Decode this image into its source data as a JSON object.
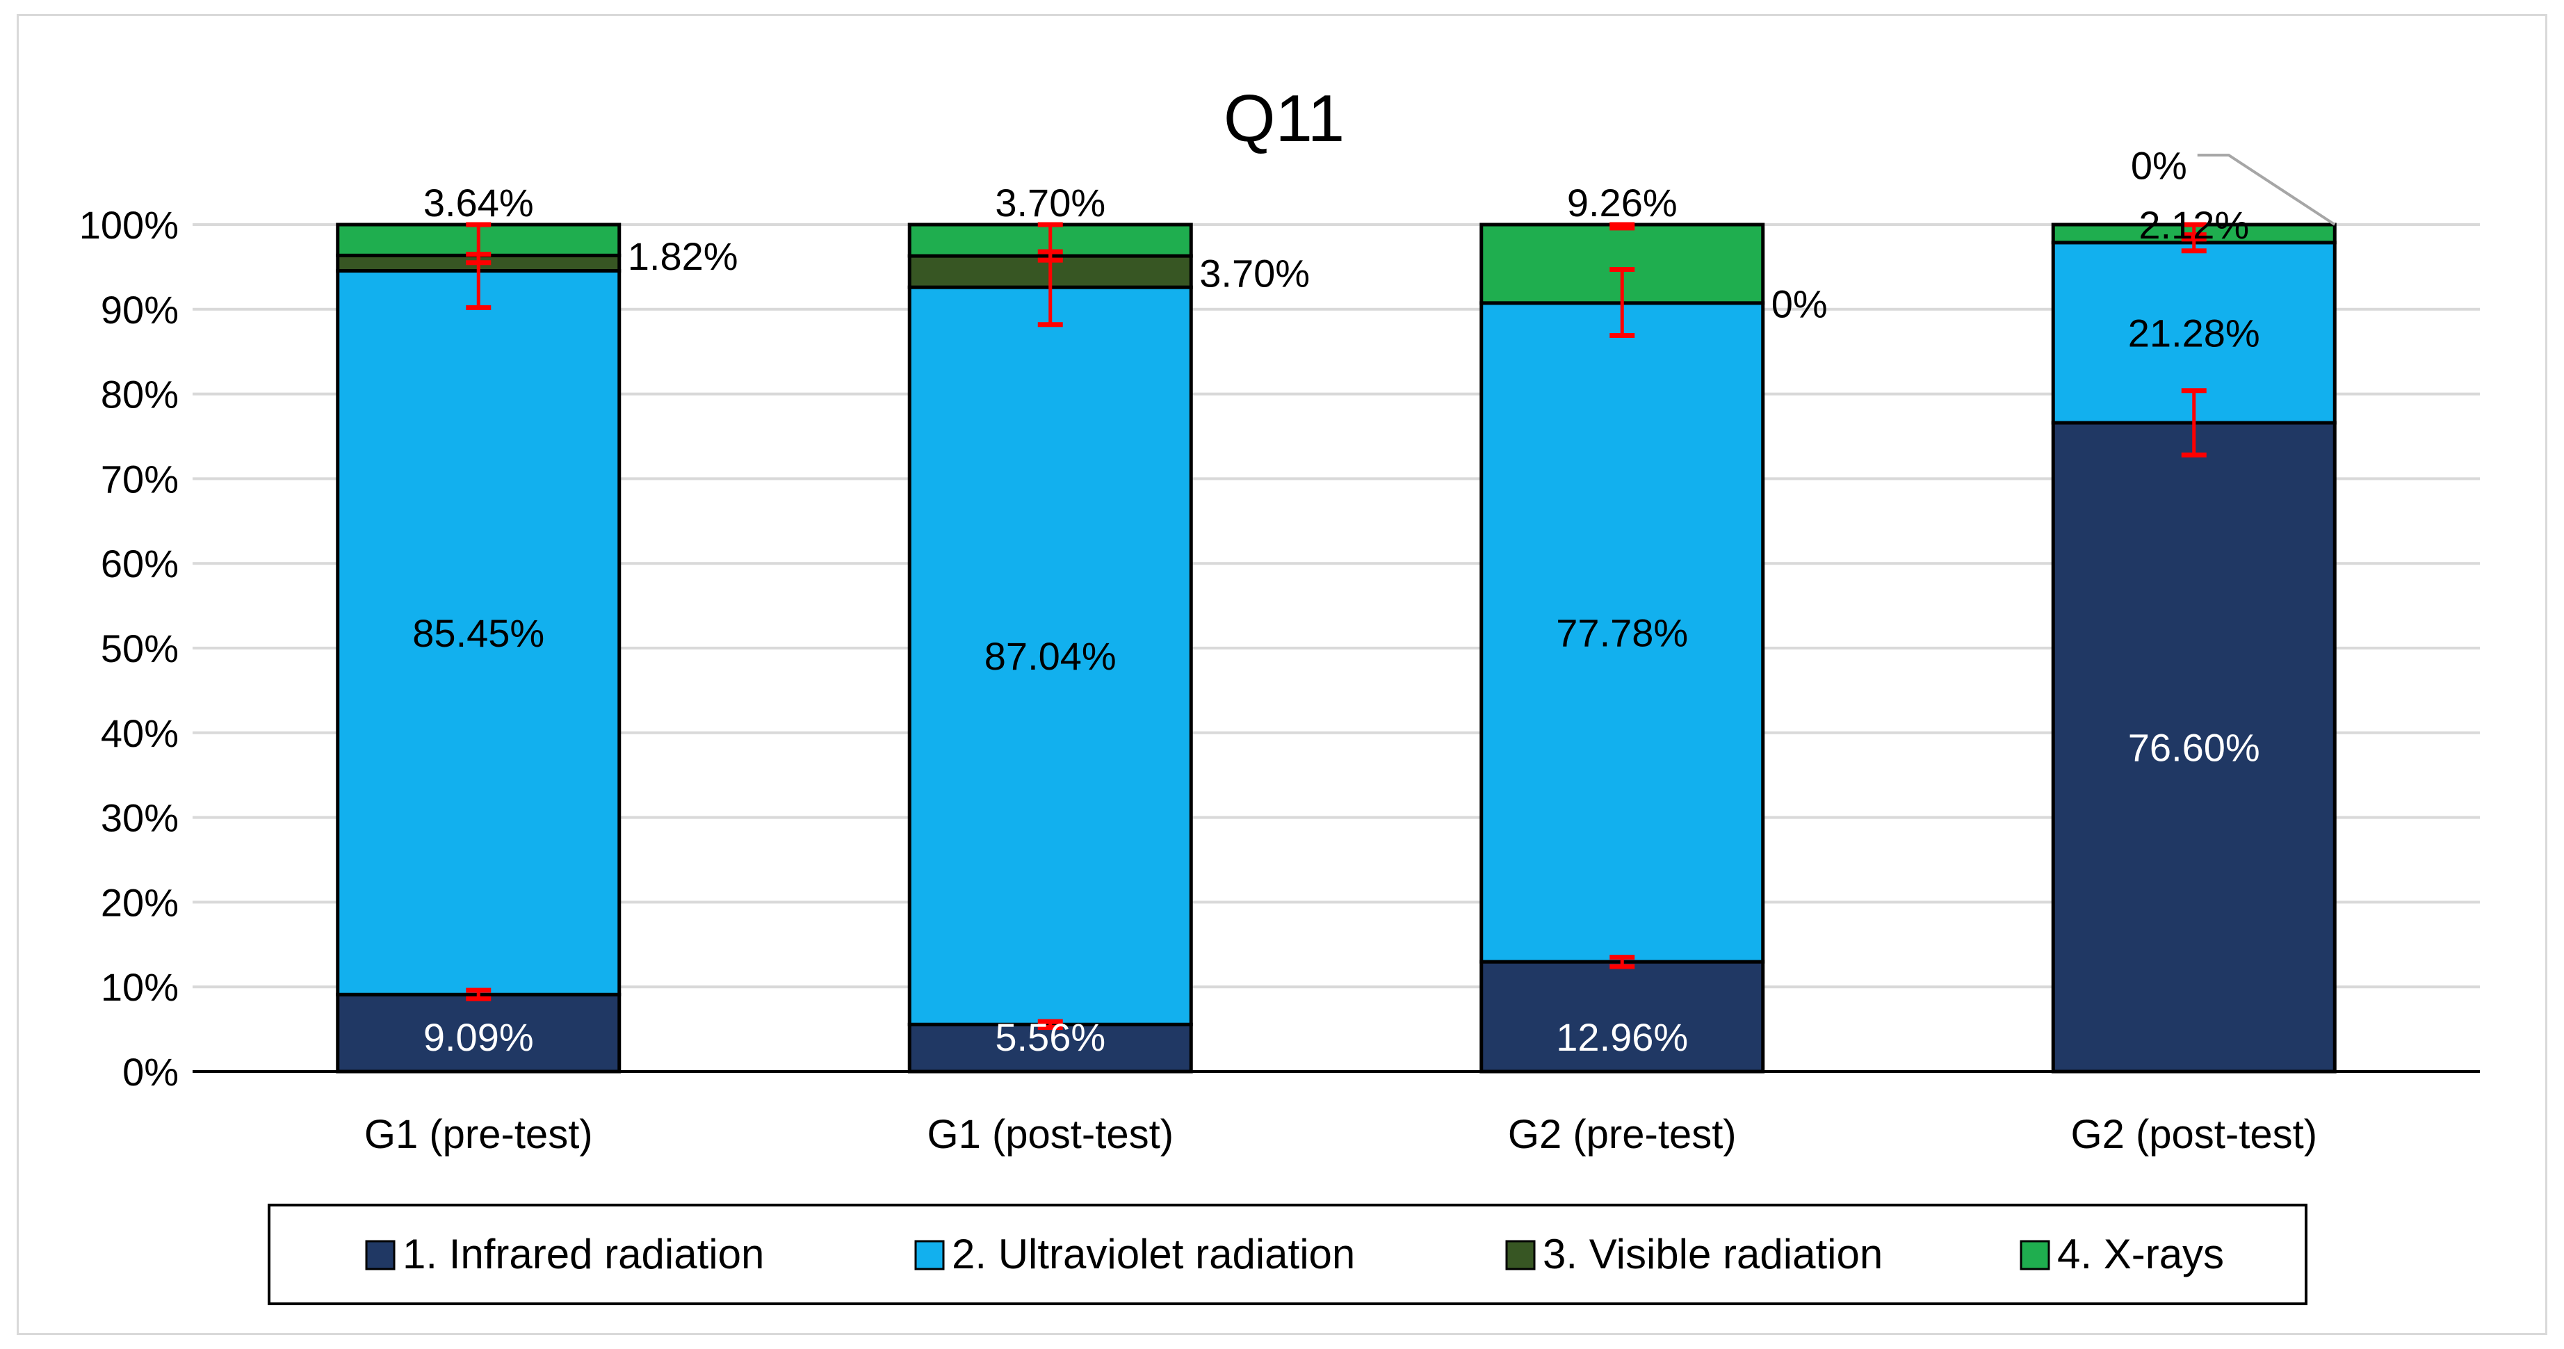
{
  "chart_data": {
    "type": "bar",
    "stacked": true,
    "title": "Q11",
    "xlabel": "",
    "ylabel": "",
    "ylim": [
      0,
      100
    ],
    "y_ticks": [
      "0%",
      "10%",
      "20%",
      "30%",
      "40%",
      "50%",
      "60%",
      "70%",
      "80%",
      "90%",
      "100%"
    ],
    "grid": true,
    "legend_position": "bottom",
    "categories": [
      "G1 (pre-test)",
      "G1 (post-test)",
      "G2 (pre-test)",
      "G2 (post-test)"
    ],
    "series": [
      {
        "name": "1. Infrared radiation",
        "color": "#203864",
        "values": [
          9.09,
          5.56,
          12.96,
          76.6
        ],
        "labels": [
          "9.09%",
          "5.56%",
          "12.96%",
          "76.60%"
        ],
        "label_color": "#ffffff"
      },
      {
        "name": "2. Ultraviolet radiation",
        "color": "#12b0ee",
        "values": [
          85.45,
          87.04,
          77.78,
          21.28
        ],
        "labels": [
          "85.45%",
          "87.04%",
          "77.78%",
          "21.28%"
        ],
        "label_color": "#000000"
      },
      {
        "name": "3. Visible radiation",
        "color": "#375623",
        "values": [
          1.82,
          3.7,
          0,
          0
        ],
        "labels": [
          "1.82%",
          "3.70%",
          "0%",
          "0%"
        ],
        "label_color": "#000000"
      },
      {
        "name": "4. X-rays",
        "color": "#1fae4f",
        "values": [
          3.64,
          3.7,
          9.26,
          2.12
        ],
        "labels": [
          "3.64%",
          "3.70%",
          "9.26%",
          "2.12%"
        ],
        "label_color": "#000000"
      }
    ],
    "error_bars": {
      "color": "#ff0000",
      "series": [
        {
          "name": "1. Infrared radiation",
          "ranges": [
            [
              8.6,
              9.6
            ],
            [
              5.2,
              5.9
            ],
            [
              12.4,
              13.5
            ],
            [
              72.8,
              80.4
            ]
          ]
        },
        {
          "name": "2. Ultraviolet radiation",
          "ranges": [
            [
              90.2,
              96.5
            ],
            [
              88.2,
              96.8
            ],
            [
              86.9,
              94.7
            ],
            [
              96.9,
              98.3
            ]
          ]
        },
        {
          "name": "4. X-rays",
          "ranges": [
            [
              95.5,
              100
            ],
            [
              95.8,
              100
            ],
            [
              99.6,
              100
            ],
            [
              98.8,
              100
            ]
          ]
        }
      ]
    }
  }
}
